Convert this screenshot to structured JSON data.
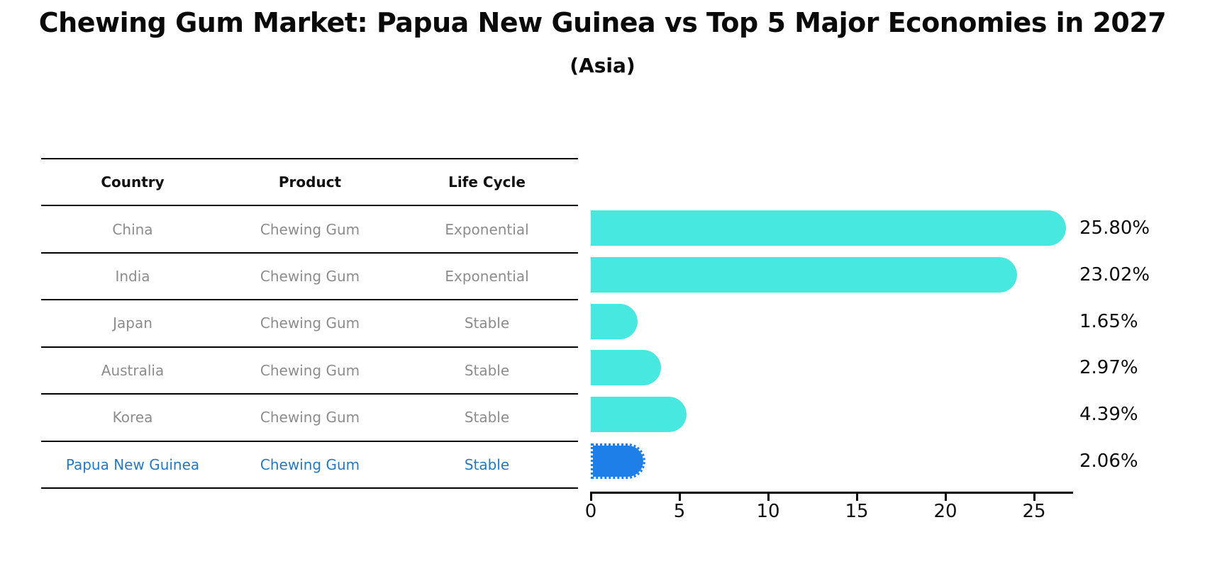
{
  "title": "Chewing Gum Market: Papua New Guinea vs Top 5 Major Economies in 2027",
  "subtitle": "(Asia)",
  "table": {
    "headers": [
      "Country",
      "Product",
      "Life Cycle"
    ],
    "rows": [
      {
        "country": "China",
        "product": "Chewing Gum",
        "life_cycle": "Exponential",
        "highlight": false
      },
      {
        "country": "India",
        "product": "Chewing Gum",
        "life_cycle": "Exponential",
        "highlight": false
      },
      {
        "country": "Japan",
        "product": "Chewing Gum",
        "life_cycle": "Stable",
        "highlight": false
      },
      {
        "country": "Australia",
        "product": "Chewing Gum",
        "life_cycle": "Stable",
        "highlight": false
      },
      {
        "country": "Korea",
        "product": "Chewing Gum",
        "life_cycle": "Stable",
        "highlight": false
      },
      {
        "country": "Papua New Guinea",
        "product": "Chewing Gum",
        "life_cycle": "Stable",
        "highlight": true
      }
    ]
  },
  "chart_data": {
    "type": "bar",
    "orientation": "horizontal",
    "categories": [
      "China",
      "India",
      "Japan",
      "Australia",
      "Korea",
      "Papua New Guinea"
    ],
    "values": [
      25.8,
      23.02,
      1.65,
      2.97,
      4.39,
      2.06
    ],
    "labels": [
      "25.80%",
      "23.02%",
      "1.65%",
      "2.97%",
      "4.39%",
      "2.06%"
    ],
    "xticks": [
      "0",
      "5",
      "10",
      "15",
      "20",
      "25"
    ],
    "xlim": [
      0,
      27.2
    ],
    "grid": false,
    "legend": "none",
    "bar_color": "#47E8E0",
    "highlight_color": "#1F7FE8",
    "highlight_index": 5,
    "highlight_text_color": "#2878BE",
    "table_text_color": "#8C8C8C"
  }
}
